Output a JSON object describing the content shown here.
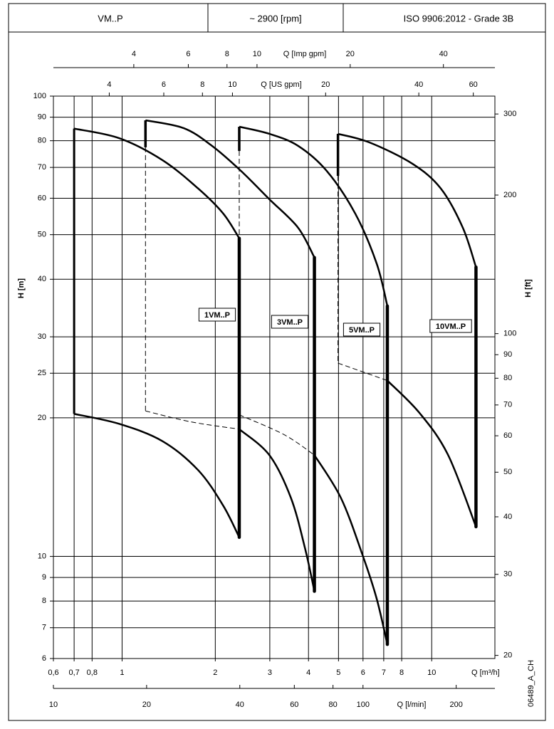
{
  "header": {
    "cells": [
      "VM..P",
      "~ 2900 [rpm]",
      "ISO 9906:2012 - Grade 3B"
    ]
  },
  "code": "06489_A_CH",
  "chart_data": {
    "type": "line",
    "xlabel": "Q [m³/h]",
    "ylabel": "H [m]",
    "y2label": "H [ft]",
    "xscale": "log",
    "yscale": "log",
    "grid": true,
    "xlim": [
      0.6,
      16
    ],
    "xticks": [
      {
        "value": 0.6,
        "label": "0,6"
      },
      {
        "value": 0.7,
        "label": "0,7"
      },
      {
        "value": 0.8,
        "label": "0,8"
      },
      1,
      2,
      3,
      4,
      5,
      6,
      7,
      8,
      10
    ],
    "ylim": [
      6,
      100
    ],
    "yticks": [
      6,
      7,
      8,
      9,
      10,
      20,
      25,
      30,
      40,
      50,
      60,
      70,
      80,
      90,
      100
    ],
    "y2lim": [
      19.69,
      328.1
    ],
    "y2ticks": [
      20,
      30,
      40,
      50,
      60,
      70,
      80,
      90,
      100,
      200,
      300
    ],
    "secondary_x_axes": [
      {
        "label": "Q [l/min]",
        "position": "bottom",
        "lim": [
          10,
          266.7
        ],
        "ticks": [
          10,
          20,
          40,
          60,
          80,
          100,
          200
        ]
      },
      {
        "label": "Q [US gpm]",
        "position": "top",
        "lim": [
          2.64,
          70.45
        ],
        "ticks": [
          4,
          6,
          8,
          10,
          20,
          40,
          60
        ]
      },
      {
        "label": "Q [Imp gpm]",
        "position": "top",
        "lim": [
          2.2,
          58.66
        ],
        "ticks": [
          4,
          6,
          8,
          10,
          20,
          40
        ]
      }
    ],
    "series": [
      {
        "name": "1VM..P",
        "color": "#000000",
        "upper_q": [
          0.7,
          0.98,
          1.35,
          1.76,
          2.12,
          2.39
        ],
        "upper_h": [
          85,
          81,
          72.6,
          63,
          55.6,
          49.1
        ],
        "lower_q": [
          0.7,
          0.98,
          1.35,
          1.76,
          2.12,
          2.39
        ],
        "lower_h": [
          20.4,
          19.4,
          17.8,
          15.4,
          12.9,
          11
        ]
      },
      {
        "name": "3VM..P",
        "color": "#000000",
        "step_h": 77.4,
        "upper_q": [
          1.19,
          1.58,
          1.95,
          2.42,
          2.99,
          3.7,
          4.18
        ],
        "upper_h": [
          88.6,
          85.2,
          78,
          68.8,
          59.7,
          51.8,
          44.6
        ],
        "lower_dashed_q": [
          1.19,
          1.67,
          2.39
        ],
        "lower_dashed_h": [
          20.7,
          19.6,
          18.9
        ],
        "lower_q": [
          2.39,
          2.99,
          3.51,
          3.9,
          4.18
        ],
        "lower_h": [
          18.9,
          16.6,
          13.4,
          10.4,
          8.4
        ]
      },
      {
        "name": "5VM..P",
        "color": "#000000",
        "step_h": 76,
        "upper_q": [
          2.39,
          2.99,
          3.7,
          4.58,
          5.66,
          6.64,
          7.19
        ],
        "upper_h": [
          85.8,
          82.8,
          78,
          68.8,
          55.6,
          43.3,
          35
        ],
        "lower_dashed_q": [
          2.39,
          3.33,
          4.18
        ],
        "lower_dashed_h": [
          20.3,
          18.4,
          16.6
        ],
        "lower_q": [
          4.18,
          5.09,
          5.97,
          6.64,
          7.19
        ],
        "lower_h": [
          16.6,
          13.4,
          10.1,
          8.1,
          6.44
        ]
      },
      {
        "name": "10VM..P",
        "color": "#000000",
        "step_h": 67.1,
        "upper_q": [
          4.98,
          6.3,
          8.66,
          10.7,
          12.6,
          13.9
        ],
        "upper_h": [
          82.8,
          79.3,
          71.3,
          63,
          51.8,
          42.5
        ],
        "lower_dashed_q": [
          4.98,
          7.19
        ],
        "lower_dashed_h": [
          26.3,
          24.1
        ],
        "lower_q": [
          7.19,
          9.13,
          11.3,
          13.9
        ],
        "lower_h": [
          24.1,
          20.5,
          16.6,
          11.6
        ]
      }
    ]
  }
}
